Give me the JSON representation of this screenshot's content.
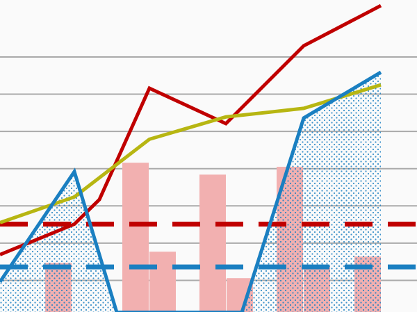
{
  "chart_data": {
    "type": "line",
    "xlim": [
      0,
      600
    ],
    "ylim": [
      0.15,
      8.53
    ],
    "yticks": [
      1,
      2,
      3,
      4,
      5,
      6,
      7
    ],
    "grid": true,
    "bars": {
      "color": "#f2b0b0",
      "x": [
        84,
        195,
        234,
        306,
        345,
        417,
        456,
        529
      ],
      "values": [
        1.47,
        4.16,
        1.77,
        3.84,
        1.06,
        4.05,
        1.37,
        1.64
      ]
    },
    "hlines": [
      {
        "value": 2.51,
        "color": "#c00000"
      },
      {
        "value": 1.36,
        "color": "#1a7fc1"
      }
    ],
    "series": [
      {
        "color": "#c00000",
        "x": [
          0,
          107,
          143,
          215,
          325,
          437,
          548
        ],
        "values": [
          1.69,
          2.51,
          3.17,
          6.16,
          5.21,
          7.3,
          8.38
        ]
      },
      {
        "color": "#b7b612",
        "x": [
          0,
          107,
          215,
          325,
          437,
          548
        ],
        "values": [
          2.55,
          3.24,
          4.79,
          5.39,
          5.62,
          6.25
        ]
      },
      {
        "color": "#1a7fc1",
        "x": [
          0,
          107,
          168,
          348,
          437,
          548
        ],
        "values": [
          0.96,
          3.92,
          0.14,
          0.14,
          5.36,
          6.59
        ],
        "stipple": true
      }
    ]
  }
}
